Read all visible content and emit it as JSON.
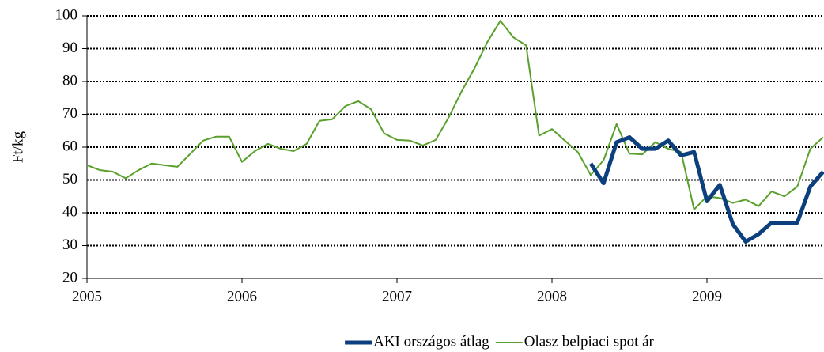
{
  "chart_data": {
    "type": "line",
    "ylabel": "Ft/kg",
    "x": [
      2005,
      2005.083,
      2005.167,
      2005.25,
      2005.333,
      2005.417,
      2005.5,
      2005.583,
      2005.667,
      2005.75,
      2005.833,
      2005.917,
      2006,
      2006.083,
      2006.167,
      2006.25,
      2006.333,
      2006.417,
      2006.5,
      2006.583,
      2006.667,
      2006.75,
      2006.833,
      2006.917,
      2007,
      2007.083,
      2007.167,
      2007.25,
      2007.333,
      2007.417,
      2007.5,
      2007.583,
      2007.667,
      2007.75,
      2007.833,
      2007.917,
      2008,
      2008.083,
      2008.167,
      2008.25,
      2008.333,
      2008.417,
      2008.5,
      2008.583,
      2008.667,
      2008.75,
      2008.833,
      2008.917,
      2009,
      2009.083,
      2009.167,
      2009.25,
      2009.333,
      2009.417,
      2009.5,
      2009.583,
      2009.667,
      2009.75
    ],
    "series": [
      {
        "name": "AKI országos átlag",
        "color": "#0b3f7e",
        "values": [
          null,
          null,
          null,
          null,
          null,
          null,
          null,
          null,
          null,
          null,
          null,
          null,
          null,
          null,
          null,
          null,
          null,
          null,
          null,
          null,
          null,
          null,
          null,
          null,
          null,
          null,
          null,
          null,
          null,
          null,
          null,
          null,
          null,
          null,
          null,
          null,
          null,
          null,
          null,
          55,
          49,
          61.5,
          63,
          59.5,
          59.5,
          62,
          57.5,
          58.5,
          43.5,
          48.5,
          36.5,
          31.2,
          33.5,
          37,
          37,
          37,
          48,
          52.5
        ]
      },
      {
        "name": "Olasz belpiaci spot ár",
        "color": "#5aa02c",
        "values": [
          54.5,
          53,
          52.5,
          50.5,
          53,
          55,
          54.5,
          54,
          58,
          62,
          63.2,
          63.2,
          55.5,
          58.8,
          61,
          59.5,
          58.8,
          61,
          68,
          68.5,
          72.5,
          74,
          71.5,
          64.2,
          62.2,
          62,
          60.5,
          62.2,
          69,
          77,
          84,
          92,
          98.5,
          93.5,
          91,
          63.5,
          65.5,
          62,
          58.5,
          51.5,
          56,
          67,
          58,
          57.8,
          61.5,
          59.5,
          58.5,
          41,
          45,
          44.5,
          43,
          44,
          42,
          46.5,
          45,
          48,
          59.5,
          63
        ]
      }
    ],
    "xlim": [
      2005,
      2009.75
    ],
    "xticks": [
      2005,
      2006,
      2007,
      2008,
      2009
    ],
    "ylim": [
      20,
      100
    ],
    "yticks": [
      20,
      30,
      40,
      50,
      60,
      70,
      80,
      90,
      100
    ],
    "grid": true,
    "legend": "bottom"
  }
}
